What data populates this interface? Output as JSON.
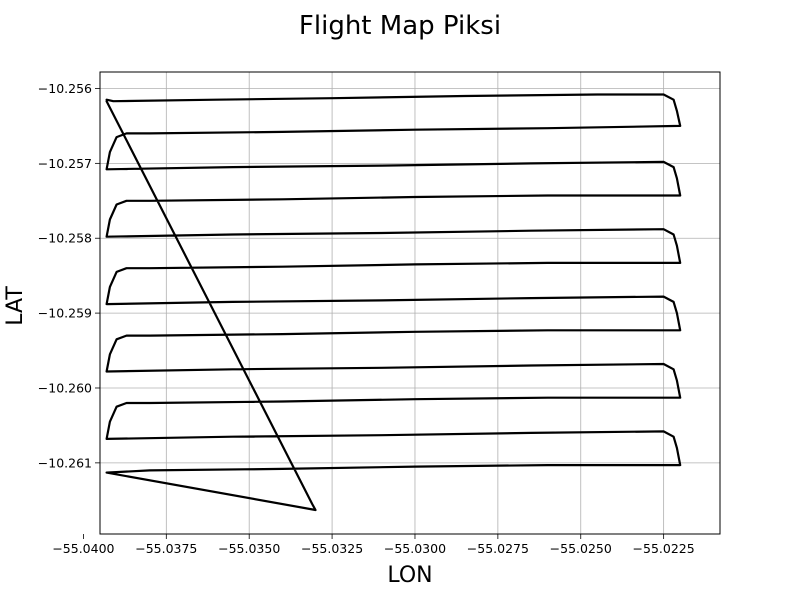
{
  "chart_data": {
    "type": "line",
    "title": "Flight Map Piksi",
    "xlabel": "LON",
    "ylabel": "LAT",
    "xlim": [
      -55.0395,
      -55.0208
    ],
    "ylim": [
      -10.26195,
      -10.25578
    ],
    "grid": true,
    "xticks": [
      {
        "value": -55.04,
        "label": "−55.0400"
      },
      {
        "value": -55.0375,
        "label": "−55.0375"
      },
      {
        "value": -55.035,
        "label": "−55.0350"
      },
      {
        "value": -55.0325,
        "label": "−55.0325"
      },
      {
        "value": -55.03,
        "label": "−55.0300"
      },
      {
        "value": -55.0275,
        "label": "−55.0275"
      },
      {
        "value": -55.025,
        "label": "−55.0250"
      },
      {
        "value": -55.0225,
        "label": "−55.0225"
      }
    ],
    "yticks": [
      {
        "value": -10.256,
        "label": "−10.256"
      },
      {
        "value": -10.257,
        "label": "−10.257"
      },
      {
        "value": -10.258,
        "label": "−10.258"
      },
      {
        "value": -10.259,
        "label": "−10.259"
      },
      {
        "value": -10.26,
        "label": "−10.260"
      },
      {
        "value": -10.261,
        "label": "−10.261"
      }
    ],
    "series": [
      {
        "color": "#000000",
        "points": [
          [
            -55.0393,
            -10.25615
          ],
          [
            -55.0391,
            -10.25617
          ],
          [
            -55.036,
            -10.25615
          ],
          [
            -55.0325,
            -10.25613
          ],
          [
            -55.0285,
            -10.2561
          ],
          [
            -55.0245,
            -10.25608
          ],
          [
            -55.0225,
            -10.25608
          ],
          [
            -55.0222,
            -10.25615
          ],
          [
            -55.0221,
            -10.2563
          ],
          [
            -55.022,
            -10.2565
          ],
          [
            -55.026,
            -10.25653
          ],
          [
            -55.03,
            -10.25655
          ],
          [
            -55.034,
            -10.25658
          ],
          [
            -55.038,
            -10.2566
          ],
          [
            -55.0387,
            -10.2566
          ],
          [
            -55.039,
            -10.25665
          ],
          [
            -55.0392,
            -10.25685
          ],
          [
            -55.0393,
            -10.25708
          ],
          [
            -55.0355,
            -10.25705
          ],
          [
            -55.031,
            -10.25703
          ],
          [
            -55.0265,
            -10.257
          ],
          [
            -55.0225,
            -10.25698
          ],
          [
            -55.0222,
            -10.25705
          ],
          [
            -55.0221,
            -10.2572
          ],
          [
            -55.022,
            -10.25743
          ],
          [
            -55.026,
            -10.25743
          ],
          [
            -55.03,
            -10.25745
          ],
          [
            -55.034,
            -10.25748
          ],
          [
            -55.038,
            -10.2575
          ],
          [
            -55.0387,
            -10.2575
          ],
          [
            -55.039,
            -10.25755
          ],
          [
            -55.0392,
            -10.25775
          ],
          [
            -55.0393,
            -10.25798
          ],
          [
            -55.0355,
            -10.25795
          ],
          [
            -55.031,
            -10.25793
          ],
          [
            -55.0265,
            -10.2579
          ],
          [
            -55.0225,
            -10.25788
          ],
          [
            -55.0222,
            -10.25795
          ],
          [
            -55.0221,
            -10.2581
          ],
          [
            -55.022,
            -10.25833
          ],
          [
            -55.026,
            -10.25833
          ],
          [
            -55.03,
            -10.25835
          ],
          [
            -55.034,
            -10.25838
          ],
          [
            -55.038,
            -10.2584
          ],
          [
            -55.0387,
            -10.2584
          ],
          [
            -55.039,
            -10.25845
          ],
          [
            -55.0392,
            -10.25865
          ],
          [
            -55.0393,
            -10.25888
          ],
          [
            -55.0355,
            -10.25885
          ],
          [
            -55.031,
            -10.25883
          ],
          [
            -55.0265,
            -10.2588
          ],
          [
            -55.0225,
            -10.25878
          ],
          [
            -55.0222,
            -10.25885
          ],
          [
            -55.0221,
            -10.259
          ],
          [
            -55.022,
            -10.25923
          ],
          [
            -55.026,
            -10.25923
          ],
          [
            -55.03,
            -10.25925
          ],
          [
            -55.034,
            -10.25928
          ],
          [
            -55.038,
            -10.2593
          ],
          [
            -55.0387,
            -10.2593
          ],
          [
            -55.039,
            -10.25935
          ],
          [
            -55.0392,
            -10.25955
          ],
          [
            -55.0393,
            -10.25978
          ],
          [
            -55.0355,
            -10.25975
          ],
          [
            -55.031,
            -10.25973
          ],
          [
            -55.0265,
            -10.2597
          ],
          [
            -55.0225,
            -10.25968
          ],
          [
            -55.0222,
            -10.25975
          ],
          [
            -55.0221,
            -10.2599
          ],
          [
            -55.022,
            -10.26013
          ],
          [
            -55.026,
            -10.26013
          ],
          [
            -55.03,
            -10.26015
          ],
          [
            -55.034,
            -10.26018
          ],
          [
            -55.038,
            -10.2602
          ],
          [
            -55.0387,
            -10.2602
          ],
          [
            -55.039,
            -10.26025
          ],
          [
            -55.0392,
            -10.26045
          ],
          [
            -55.0393,
            -10.26068
          ],
          [
            -55.0355,
            -10.26065
          ],
          [
            -55.031,
            -10.26063
          ],
          [
            -55.0265,
            -10.2606
          ],
          [
            -55.0225,
            -10.26058
          ],
          [
            -55.0222,
            -10.26065
          ],
          [
            -55.0221,
            -10.2608
          ],
          [
            -55.022,
            -10.26103
          ],
          [
            -55.026,
            -10.26103
          ],
          [
            -55.03,
            -10.26105
          ],
          [
            -55.034,
            -10.26108
          ],
          [
            -55.038,
            -10.2611
          ],
          [
            -55.0393,
            -10.26113
          ],
          [
            -55.033,
            -10.26163
          ],
          [
            -55.0331,
            -10.26155
          ],
          [
            -55.0393,
            -10.25617
          ]
        ]
      }
    ]
  }
}
